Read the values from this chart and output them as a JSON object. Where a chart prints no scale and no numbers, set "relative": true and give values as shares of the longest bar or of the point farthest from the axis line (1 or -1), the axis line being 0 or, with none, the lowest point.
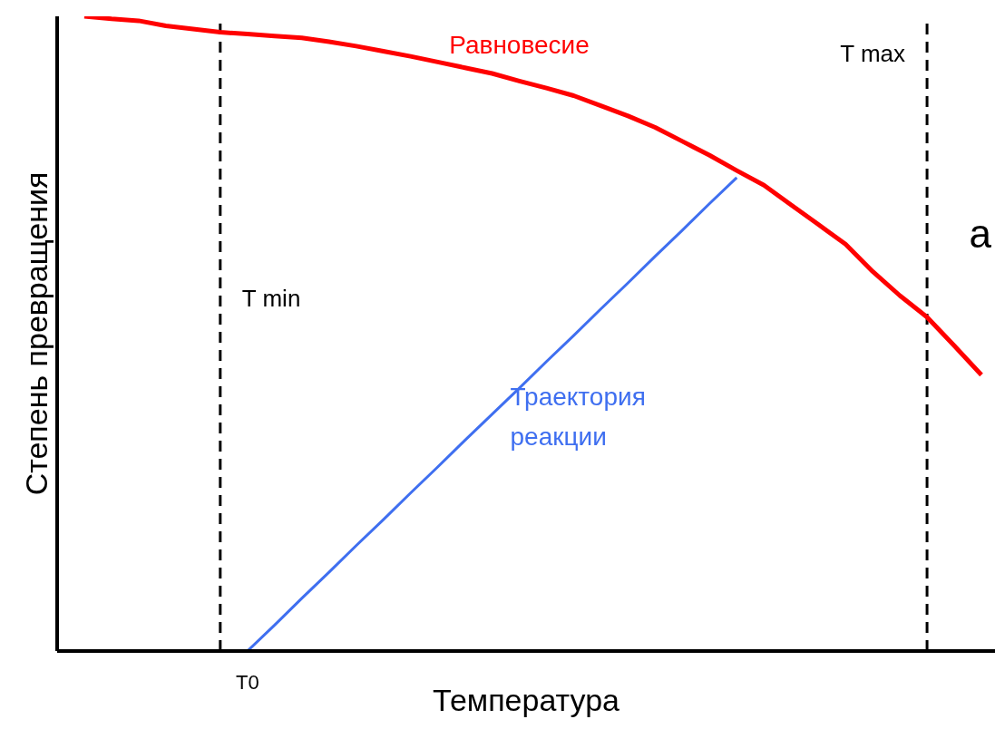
{
  "chart_data": {
    "type": "line",
    "relative": true,
    "xlabel": "Температура",
    "ylabel": "Степень превращения",
    "categories": [
      null,
      null,
      null,
      null,
      null,
      null,
      null,
      null,
      null,
      null,
      null,
      null,
      null,
      null,
      null,
      null,
      null,
      null,
      null,
      null,
      null,
      null,
      null,
      null,
      null,
      null,
      null,
      null,
      null,
      null,
      null,
      null,
      null,
      null
    ],
    "series": [
      {
        "name": "Равновесие",
        "color": "#ff0000",
        "values": [
          1.0,
          0.996,
          0.993,
          0.985,
          0.98,
          0.975,
          0.972,
          0.969,
          0.966,
          0.96,
          0.953,
          0.945,
          0.937,
          0.928,
          0.919,
          0.91,
          0.898,
          0.887,
          0.875,
          0.859,
          0.843,
          0.825,
          0.803,
          0.781,
          0.757,
          0.734,
          0.703,
          0.672,
          0.641,
          0.598,
          0.56,
          0.526,
          0.481,
          0.435
        ]
      },
      {
        "name": "Траектория реакции",
        "color": "#3f6ff0",
        "values": [
          null,
          null,
          null,
          null,
          null,
          null,
          0,
          0.041,
          0.083,
          0.124,
          0.166,
          0.207,
          0.249,
          0.29,
          0.332,
          0.373,
          0.414,
          0.456,
          0.497,
          0.539,
          0.58,
          0.622,
          0.663,
          0.705,
          0.746,
          null,
          null,
          null,
          null,
          null,
          null,
          null,
          null,
          null
        ]
      }
    ],
    "annotations": [
      "T0",
      "T min",
      "T max",
      "a"
    ],
    "legend": false,
    "grid": false,
    "marker": "none"
  }
}
